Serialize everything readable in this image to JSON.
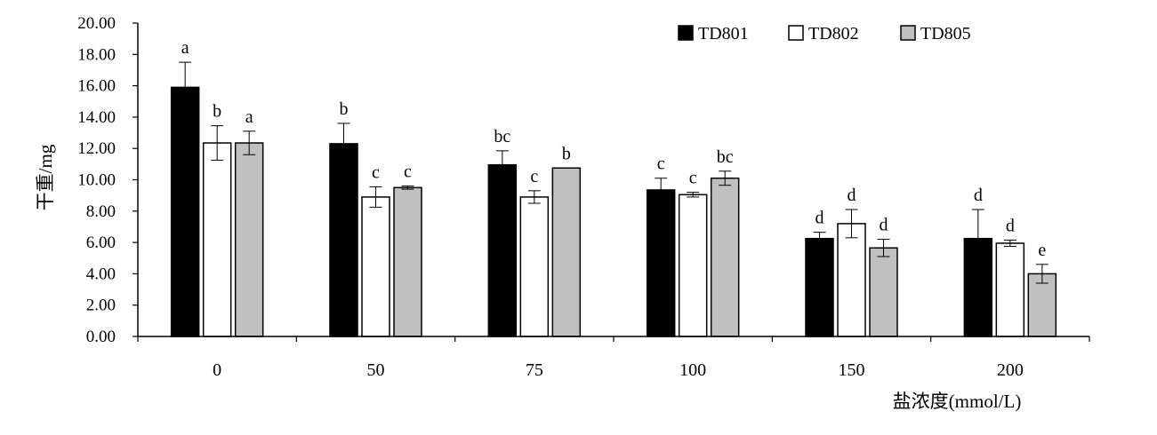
{
  "chart_data": {
    "type": "bar",
    "title": "",
    "xlabel": "盐浓度(mmol/L)",
    "ylabel": "干重/mg",
    "ylim": [
      0,
      20
    ],
    "ytick_labels": [
      "0.00",
      "2.00",
      "4.00",
      "6.00",
      "8.00",
      "10.00",
      "12.00",
      "14.00",
      "16.00",
      "18.00",
      "20.00"
    ],
    "categories": [
      "0",
      "50",
      "75",
      "100",
      "150",
      "200"
    ],
    "legend_position": "top-right",
    "grid": false,
    "series": [
      {
        "name": "TD801",
        "color": "#000000",
        "values": [
          15.9,
          12.3,
          10.95,
          9.35,
          6.25,
          6.25
        ],
        "errors": [
          1.6,
          1.3,
          0.9,
          0.75,
          0.4,
          1.85
        ],
        "letters": [
          "a",
          "b",
          "bc",
          "c",
          "d",
          "d"
        ]
      },
      {
        "name": "TD802",
        "color": "#ffffff",
        "values": [
          12.35,
          8.9,
          8.9,
          9.05,
          7.2,
          5.95
        ],
        "errors": [
          1.1,
          0.65,
          0.4,
          0.15,
          0.9,
          0.2
        ],
        "letters": [
          "b",
          "c",
          "c",
          "c",
          "d",
          "d"
        ]
      },
      {
        "name": "TD805",
        "color": "#c0c0c0",
        "values": [
          12.35,
          9.5,
          10.75,
          10.1,
          5.65,
          4.0
        ],
        "errors": [
          0.75,
          0.1,
          0.0,
          0.45,
          0.55,
          0.6
        ],
        "letters": [
          "a",
          "c",
          "b",
          "bc",
          "d",
          "e"
        ]
      }
    ]
  }
}
